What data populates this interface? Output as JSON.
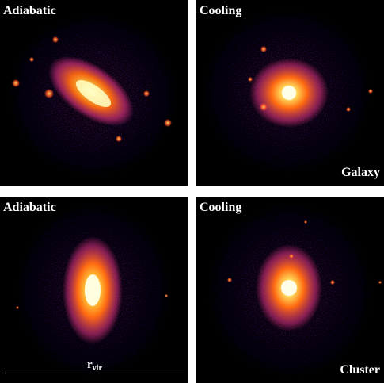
{
  "panels": {
    "top_left": {
      "title": "Adiabatic"
    },
    "top_right": {
      "title": "Cooling",
      "corner_label": "Galaxy"
    },
    "bottom_left": {
      "title": "Adiabatic",
      "scale_bar": {
        "main": "r",
        "subscript": "vir"
      }
    },
    "bottom_right": {
      "title": "Cooling",
      "corner_label": "Cluster"
    }
  },
  "colors": {
    "background": "#000000",
    "outer_halo": "#3a1ab0",
    "mid_halo": "#b0208f",
    "inner": "#ff6a00",
    "core": "#ffffc0",
    "text": "#ffffff"
  }
}
